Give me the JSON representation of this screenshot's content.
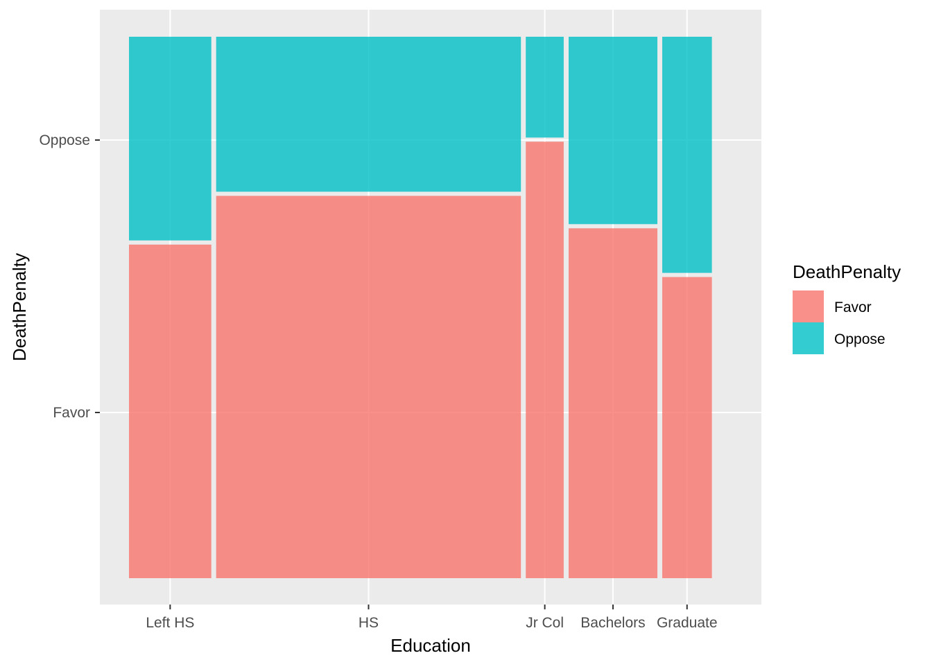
{
  "chart_data": {
    "type": "mosaic",
    "xlabel": "Education",
    "ylabel": "DeathPenalty",
    "categories": [
      "Left HS",
      "HS",
      "Jr Col",
      "Bachelors",
      "Graduate"
    ],
    "column_share": [
      0.141,
      0.522,
      0.065,
      0.152,
      0.085
    ],
    "series": [
      {
        "name": "Favor",
        "color": "#F8766D",
        "values": [
          0.62,
          0.71,
          0.81,
          0.65,
          0.56
        ]
      },
      {
        "name": "Oppose",
        "color": "#00BFC4",
        "values": [
          0.38,
          0.29,
          0.19,
          0.35,
          0.44
        ]
      }
    ],
    "y_ticks": [
      "Favor",
      "Oppose"
    ],
    "legend": {
      "title": "DeathPenalty",
      "position": "right"
    },
    "panel_background": "#EBEBEB",
    "grid": true
  }
}
